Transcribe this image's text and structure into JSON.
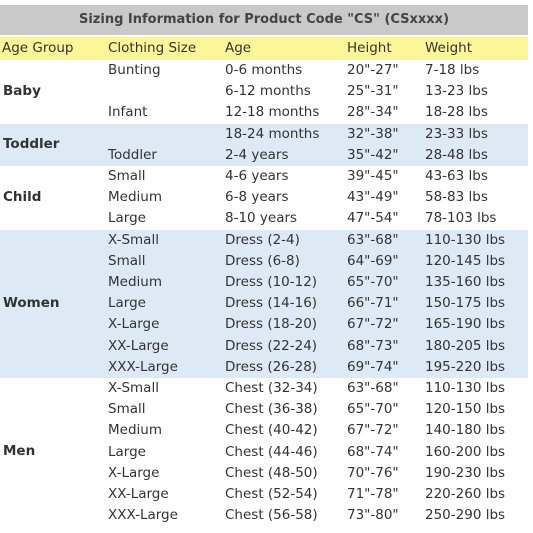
{
  "title": "Sizing Information for Product Code \"CS\" (CSxxxx)",
  "headers": [
    "Age Group",
    "Clothing Size",
    "Age",
    "Height",
    "Weight"
  ],
  "groups": [
    {
      "name": "Baby",
      "rows": [
        {
          "size": "Bunting",
          "age": "0-6 months",
          "height": "20\"-27\"",
          "weight": "7-18 lbs"
        },
        {
          "age": "6-12 months",
          "height": "25\"-31\"",
          "weight": "13-23 lbs"
        },
        {
          "size": "Infant",
          "age": "12-18 months",
          "height": "28\"-34\"",
          "weight": "18-28 lbs"
        }
      ]
    },
    {
      "name": "Toddler",
      "rows": [
        {
          "age": "18-24 months",
          "height": "32\"-38\"",
          "weight": "23-33 lbs"
        },
        {
          "size": "Toddler",
          "age": "2-4 years",
          "height": "35\"-42\"",
          "weight": "28-48 lbs"
        }
      ]
    },
    {
      "name": "Child",
      "rows": [
        {
          "size": "Small",
          "age": "4-6 years",
          "height": "39\"-45\"",
          "weight": "43-63 lbs"
        },
        {
          "size": "Medium",
          "age": "6-8 years",
          "height": "43\"-49\"",
          "weight": "58-83 lbs"
        },
        {
          "size": "Large",
          "age": "8-10 years",
          "height": "47\"-54\"",
          "weight": "78-103 lbs"
        }
      ]
    },
    {
      "name": "Women",
      "rows": [
        {
          "size": "X-Small",
          "age": "Dress (2-4)",
          "height": "63\"-68\"",
          "weight": "110-130 lbs"
        },
        {
          "size": "Small",
          "age": "Dress (6-8)",
          "height": "64\"-69\"",
          "weight": "120-145 lbs"
        },
        {
          "size": "Medium",
          "age": "Dress (10-12)",
          "height": "65\"-70\"",
          "weight": "135-160 lbs"
        },
        {
          "size": "Large",
          "age": "Dress (14-16)",
          "height": "66\"-71\"",
          "weight": "150-175 lbs"
        },
        {
          "size": "X-Large",
          "age": "Dress (18-20)",
          "height": "67\"-72\"",
          "weight": "165-190 lbs"
        },
        {
          "size": "XX-Large",
          "age": "Dress (22-24)",
          "height": "68\"-73\"",
          "weight": "180-205 lbs"
        },
        {
          "size": "XXX-Large",
          "age": "Dress (26-28)",
          "height": "69\"-74\"",
          "weight": "195-220 lbs"
        }
      ]
    },
    {
      "name": "Men",
      "rows": [
        {
          "size": "X-Small",
          "age": "Chest (32-34)",
          "height": "63\"-68\"",
          "weight": "110-130 lbs"
        },
        {
          "size": "Small",
          "age": "Chest (36-38)",
          "height": "65\"-70\"",
          "weight": "120-150 lbs"
        },
        {
          "size": "Medium",
          "age": "Chest (40-42)",
          "height": "67\"-72\"",
          "weight": "140-180 lbs"
        },
        {
          "size": "Large",
          "age": "Chest (44-46)",
          "height": "68\"-74\"",
          "weight": "160-200 lbs"
        },
        {
          "size": "X-Large",
          "age": "Chest (48-50)",
          "height": "70\"-76\"",
          "weight": "190-230 lbs"
        },
        {
          "size": "XX-Large",
          "age": "Chest (52-54)",
          "height": "71\"-78\"",
          "weight": "220-260 lbs"
        },
        {
          "size": "XXX-Large",
          "age": "Chest (56-58)",
          "height": "73\"-80\"",
          "weight": "250-290 lbs"
        }
      ]
    }
  ]
}
